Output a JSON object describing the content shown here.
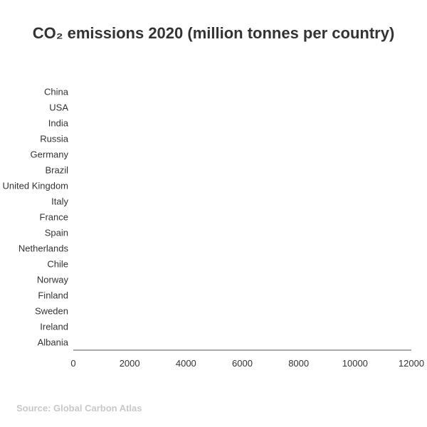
{
  "chart_data": {
    "type": "bar",
    "orientation": "horizontal",
    "title": "CO₂ emissions 2020 (million tonnes per country)",
    "categories": [
      "China",
      "USA",
      "India",
      "Russia",
      "Germany",
      "Brazil",
      "United Kingdom",
      "Italy",
      "France",
      "Spain",
      "Netherlands",
      "Chile",
      "Norway",
      "Finland",
      "Sweden",
      "Ireland",
      "Albania"
    ],
    "xlim": [
      0,
      12000
    ],
    "xticks": [
      "0",
      "2000",
      "4000",
      "6000",
      "8000",
      "10000",
      "12000"
    ],
    "grid": false,
    "axis_color": "#555555"
  },
  "source": "Source: Global Carbon Atlas"
}
